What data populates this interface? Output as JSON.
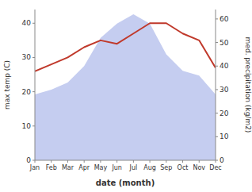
{
  "chart_data": {
    "type": "line",
    "x_label": "date (month)",
    "y_label": "max temp (C)",
    "y2_label": "med. precipitation (kg/m2)",
    "categories": [
      "Jan",
      "Feb",
      "Mar",
      "Apr",
      "May",
      "Jun",
      "Jul",
      "Aug",
      "Sep",
      "Oct",
      "Nov",
      "Dec"
    ],
    "series": [
      {
        "type": "area",
        "color": "#c5cdf0",
        "axis": "y2",
        "values": [
          28,
          30,
          33,
          40,
          52,
          58,
          62,
          58,
          45,
          38,
          36,
          28
        ]
      },
      {
        "type": "line",
        "color": "#c0392b",
        "values": [
          26,
          28,
          30,
          33,
          35,
          34,
          37,
          40,
          40,
          37,
          35,
          27
        ]
      }
    ],
    "ylim": [
      0,
      44
    ],
    "yticks": [
      0,
      10,
      20,
      30,
      40
    ],
    "y2lim": [
      0,
      64
    ],
    "y2ticks": [
      0,
      10,
      20,
      30,
      40,
      50,
      60
    ],
    "grid": false
  }
}
